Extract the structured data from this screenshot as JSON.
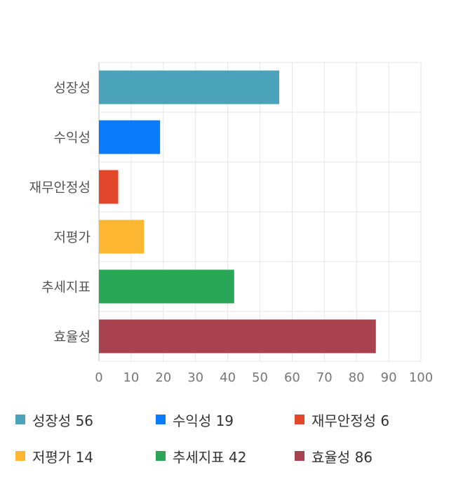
{
  "chart_data": {
    "type": "bar",
    "orientation": "horizontal",
    "categories": [
      "성장성",
      "수익성",
      "재무안정성",
      "저평가",
      "추세지표",
      "효율성"
    ],
    "values": [
      56,
      19,
      6,
      14,
      42,
      86
    ],
    "colors": [
      "#4aa3ba",
      "#0a7cfb",
      "#e2472a",
      "#fdb733",
      "#2aa657",
      "#a7424e"
    ],
    "xlim": [
      0,
      100
    ],
    "xticks": [
      0,
      10,
      20,
      30,
      40,
      50,
      60,
      70,
      80,
      90,
      100
    ],
    "grid": true,
    "legend_position": "bottom",
    "legend": [
      {
        "name": "성장성",
        "value": "56"
      },
      {
        "name": "수익성",
        "value": "19"
      },
      {
        "name": "재무안정성",
        "value": "6"
      },
      {
        "name": "저평가",
        "value": "14"
      },
      {
        "name": "추세지표",
        "value": "42"
      },
      {
        "name": "효율성",
        "value": "86"
      }
    ]
  }
}
